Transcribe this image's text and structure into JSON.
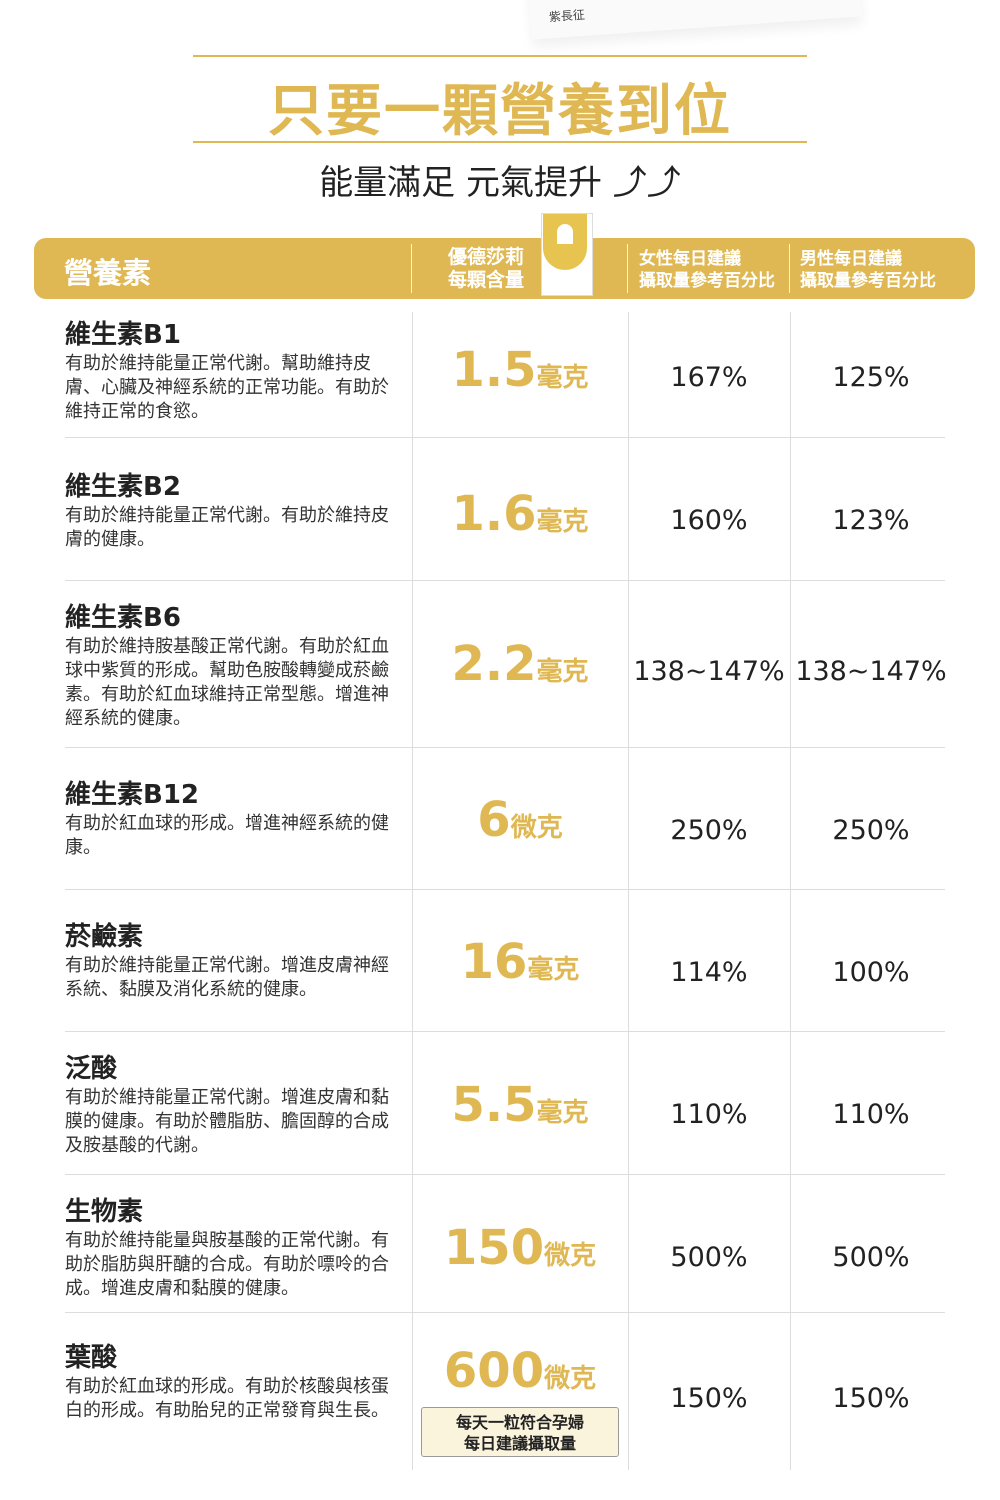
{
  "top_card_text": "紫長征",
  "title": "只要一顆營養到位",
  "subtitle": "能量滿足 元氣提升 ⤴⤴",
  "header": {
    "nutrient": "營養素",
    "product": [
      "優德莎莉",
      "每顆含量"
    ],
    "female": [
      "女性每日建議",
      "攝取量參考百分比"
    ],
    "male": [
      "男性每日建議",
      "攝取量參考百分比"
    ]
  },
  "rows": [
    {
      "name": "維生素B1",
      "desc": "有助於維持能量正常代謝。幫助維持皮膚、心臟及神經系統的正常功能。有助於維持正常的食慾。",
      "amount": "1.5",
      "unit": "毫克",
      "female": "167%",
      "male": "125%"
    },
    {
      "name": "維生素B2",
      "desc": "有助於維持能量正常代謝。有助於維持皮膚的健康。",
      "amount": "1.6",
      "unit": "毫克",
      "female": "160%",
      "male": "123%"
    },
    {
      "name": "維生素B6",
      "desc": "有助於維持胺基酸正常代謝。有助於紅血球中紫質的形成。幫助色胺酸轉變成菸鹼素。有助於紅血球維持正常型態。增進神經系統的健康。",
      "amount": "2.2",
      "unit": "毫克",
      "female": "138~147%",
      "male": "138~147%"
    },
    {
      "name": "維生素B12",
      "desc": "有助於紅血球的形成。增進神經系統的健康。",
      "amount": "6",
      "unit": "微克",
      "female": "250%",
      "male": "250%"
    },
    {
      "name": "菸鹼素",
      "desc": "有助於維持能量正常代謝。增進皮膚神經系統、黏膜及消化系統的健康。",
      "amount": "16",
      "unit": "毫克",
      "female": "114%",
      "male": "100%"
    },
    {
      "name": "泛酸",
      "desc": "有助於維持能量正常代謝。增進皮膚和黏膜的健康。有助於體脂肪、膽固醇的合成及胺基酸的代謝。",
      "amount": "5.5",
      "unit": "毫克",
      "female": "110%",
      "male": "110%"
    },
    {
      "name": "生物素",
      "desc": "有助於維持能量與胺基酸的正常代謝。有助於脂肪與肝醣的合成。有助於嘌呤的合成。增進皮膚和黏膜的健康。",
      "amount": "150",
      "unit": "微克",
      "female": "500%",
      "male": "500%"
    },
    {
      "name": "葉酸",
      "desc": "有助於紅血球的形成。有助於核酸與核蛋白的形成。有助胎兒的正常發育與生長。",
      "amount": "600",
      "unit": "微克",
      "female": "150%",
      "male": "150%"
    }
  ],
  "badge": [
    "每天一粒符合孕婦",
    "每日建議攝取量"
  ],
  "colors": {
    "accent": "#e0b853"
  }
}
